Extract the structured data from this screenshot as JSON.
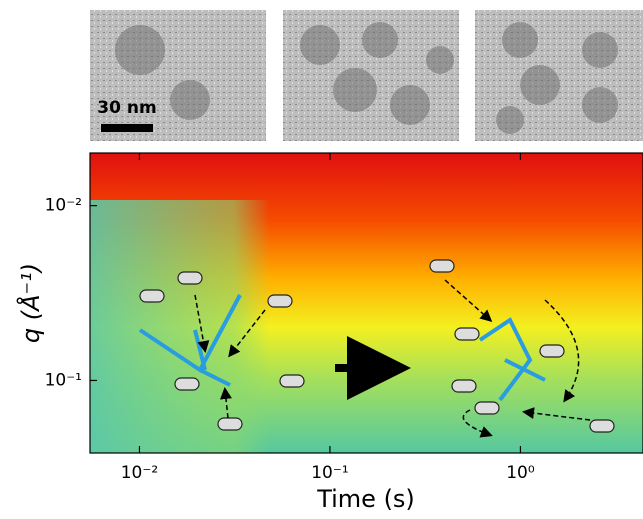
{
  "chart_data": {
    "type": "heatmap",
    "x_label": "Time (s)",
    "y_label": "q (Å⁻¹)",
    "xlim": [
      0.0055,
      4.4
    ],
    "ylim": [
      0.005,
      0.26
    ],
    "log_x": true,
    "log_y": true,
    "y_inverted": true,
    "xticks": [
      {
        "value": 0.01,
        "label": "10⁻²"
      },
      {
        "value": 0.1,
        "label": "10⁻¹"
      },
      {
        "value": 1,
        "label": "10⁰"
      }
    ],
    "yticks": [
      {
        "value": 0.01,
        "label": "10⁻²"
      },
      {
        "value": 0.1,
        "label": "10⁻¹"
      }
    ],
    "scale_bar_label": "30 nm"
  }
}
